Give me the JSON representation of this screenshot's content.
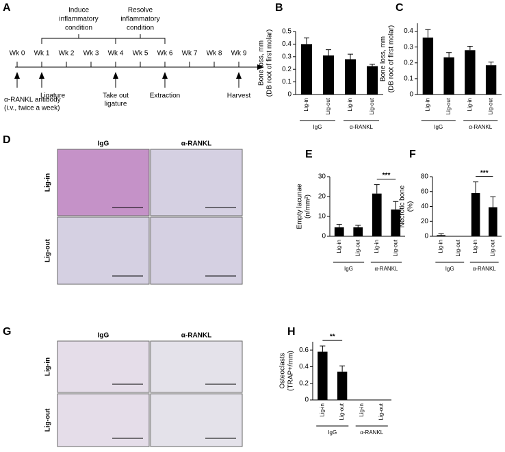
{
  "timeline": {
    "panel": "A",
    "weeks": [
      "Wk 0",
      "Wk 1",
      "Wk 2",
      "Wk 3",
      "Wk 4",
      "Wk 5",
      "Wk 6",
      "Wk 7",
      "Wk 8",
      "Wk 9"
    ],
    "phases": [
      {
        "label": [
          "Induce",
          "inflammatory",
          "condition"
        ]
      },
      {
        "label": [
          "Resolve",
          "inflammatory",
          "condition"
        ]
      }
    ],
    "events": [
      {
        "label": [
          "α-RANKL antibody",
          "(i.v., twice a week)"
        ]
      },
      {
        "label": [
          "Ligature"
        ]
      },
      {
        "label": [
          "Take out",
          "ligature"
        ]
      },
      {
        "label": [
          "Extraction"
        ]
      },
      {
        "label": [
          "Harvest"
        ]
      }
    ]
  },
  "histology": [
    {
      "panel": "D",
      "columns": [
        "IgG",
        "α-RANKL"
      ],
      "rows": [
        "Lig-in",
        "Lig-out"
      ]
    },
    {
      "panel": "G",
      "columns": [
        "IgG",
        "α-RANKL"
      ],
      "rows": [
        "Lig-in",
        "Lig-out"
      ]
    }
  ],
  "chart_data": [
    {
      "type": "bar",
      "panel": "B",
      "ylabel": [
        "Bone loss, mm",
        "(DB root of first molar)"
      ],
      "categories": [
        "Lig-in",
        "Lig-out",
        "Lig-in",
        "Lig-out"
      ],
      "values": [
        0.4,
        0.31,
        0.28,
        0.225
      ],
      "errors": [
        0.05,
        0.045,
        0.04,
        0.015
      ],
      "color": "#000000",
      "groups": [
        {
          "name": "IgG"
        },
        {
          "name": "α-RANKL"
        }
      ],
      "ylim": [
        0,
        0.5
      ],
      "yticks": [
        0,
        0.1,
        0.2,
        0.3,
        0.4,
        0.5
      ]
    },
    {
      "type": "bar",
      "panel": "C",
      "ylabel": [
        "Bone loss, mm",
        "(DB root of first molar)"
      ],
      "categories": [
        "Lig-in",
        "Lig-out",
        "Lig-in",
        "Lig-out"
      ],
      "values": [
        0.36,
        0.235,
        0.28,
        0.185
      ],
      "errors": [
        0.05,
        0.03,
        0.025,
        0.02
      ],
      "color": "#000000",
      "groups": [
        {
          "name": "IgG"
        },
        {
          "name": "α-RANKL"
        }
      ],
      "ylim": [
        0,
        0.45
      ],
      "yticks": [
        0,
        0.1,
        0.2,
        0.3,
        0.4
      ]
    },
    {
      "type": "bar",
      "panel": "E",
      "ylabel": [
        "Empty lacunae",
        "(n/mm²)"
      ],
      "categories": [
        "Lig-in",
        "Lig-out",
        "Lig-in",
        "Lig-out"
      ],
      "values": [
        4.5,
        4.5,
        21.5,
        13.5
      ],
      "errors": [
        1.5,
        1,
        4.5,
        4
      ],
      "color": "#000000",
      "groups": [
        {
          "name": "IgG"
        },
        {
          "name": "α-RANKL",
          "significance": "***"
        }
      ],
      "ylim": [
        0,
        30
      ],
      "yticks": [
        0,
        10,
        20,
        30
      ]
    },
    {
      "type": "bar",
      "panel": "F",
      "ylabel": [
        "Necrotic bone",
        "(%)"
      ],
      "categories": [
        "Lig-in",
        "Lig-out",
        "Lig-in",
        "Lig-out"
      ],
      "values": [
        1.5,
        0,
        58,
        39
      ],
      "errors": [
        2,
        0,
        15,
        14
      ],
      "color": "#000000",
      "groups": [
        {
          "name": "IgG"
        },
        {
          "name": "α-RANKL",
          "significance": "***"
        }
      ],
      "ylim": [
        0,
        80
      ],
      "yticks": [
        0,
        20,
        40,
        60,
        80
      ]
    },
    {
      "type": "bar",
      "panel": "H",
      "ylabel": [
        "Osteoclasts",
        "(TRAP+/mm)"
      ],
      "categories": [
        "Lig-in",
        "Lig-out",
        "Lig-in",
        "Lig-out"
      ],
      "values": [
        0.58,
        0.34,
        0,
        0
      ],
      "errors": [
        0.07,
        0.07,
        0,
        0
      ],
      "color": "#000000",
      "groups": [
        {
          "name": "IgG",
          "significance": "**"
        },
        {
          "name": "α-RANKL"
        }
      ],
      "ylim": [
        0,
        0.7
      ],
      "yticks": [
        0,
        0.2,
        0.4,
        0.6
      ]
    }
  ]
}
